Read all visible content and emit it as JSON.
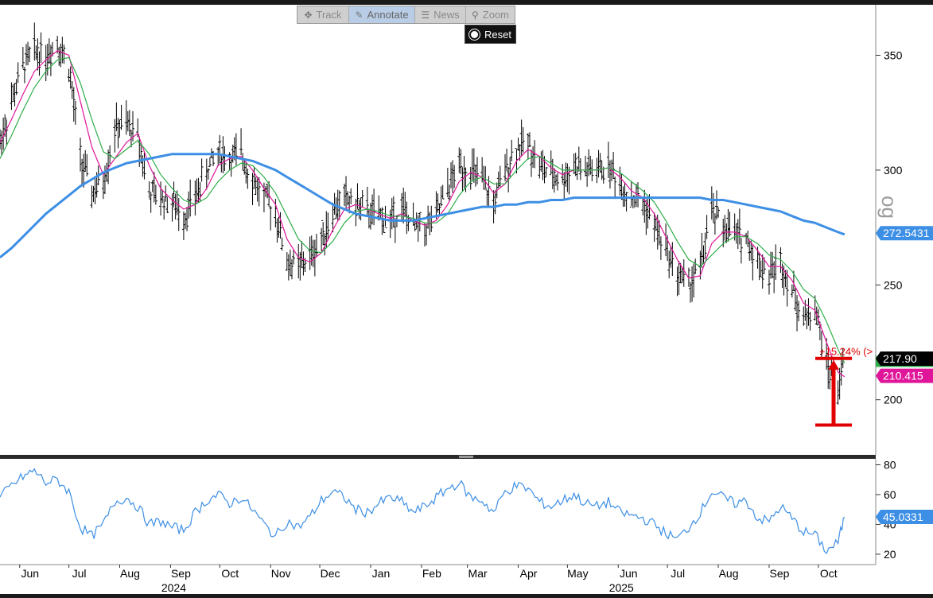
{
  "toolbar": {
    "buttons": [
      {
        "label": "Track",
        "icon": "crosshair-icon"
      },
      {
        "label": "Annotate",
        "icon": "pencil-icon"
      },
      {
        "label": "News",
        "icon": "news-icon"
      },
      {
        "label": "Zoom",
        "icon": "magnifier-icon"
      }
    ],
    "reset_label": "Reset"
  },
  "logo_text": "og",
  "colors": {
    "price": "#000000",
    "ma_fast": "#e0169a",
    "ma_mid": "#2fae4a",
    "ma_slow": "#3d8fe5",
    "rsi": "#3d8fe5",
    "annotation": "#e00000",
    "label_last": "#000000"
  },
  "chart_data": [
    {
      "type": "line",
      "name": "price-panel",
      "ylim": [
        176,
        372
      ],
      "yticks": [
        200,
        250,
        300,
        350
      ],
      "x_range": [
        "2024-05-20",
        "2025-10-20"
      ],
      "x_month_labels": [
        {
          "date": "2024-06-01",
          "label": "Jun"
        },
        {
          "date": "2024-07-01",
          "label": "Jul"
        },
        {
          "date": "2024-08-01",
          "label": "Aug"
        },
        {
          "date": "2024-09-01",
          "label": "Sep"
        },
        {
          "date": "2024-10-01",
          "label": "Oct"
        },
        {
          "date": "2024-11-01",
          "label": "Nov"
        },
        {
          "date": "2024-12-01",
          "label": "Dec"
        },
        {
          "date": "2025-01-01",
          "label": "Jan"
        },
        {
          "date": "2025-02-01",
          "label": "Feb"
        },
        {
          "date": "2025-03-01",
          "label": "Mar"
        },
        {
          "date": "2025-04-01",
          "label": "Apr"
        },
        {
          "date": "2025-05-01",
          "label": "May"
        },
        {
          "date": "2025-06-01",
          "label": "Jun"
        },
        {
          "date": "2025-07-01",
          "label": "Jul"
        },
        {
          "date": "2025-08-01",
          "label": "Aug"
        },
        {
          "date": "2025-09-01",
          "label": "Sep"
        },
        {
          "date": "2025-10-01",
          "label": "Oct"
        }
      ],
      "x_year_labels": [
        {
          "date": "2024-09-01",
          "label": "2024"
        },
        {
          "date": "2025-06-01",
          "label": "2025"
        }
      ],
      "price_close": {
        "x": [
          "2024-05-20",
          "2024-05-27",
          "2024-06-03",
          "2024-06-10",
          "2024-06-17",
          "2024-06-24",
          "2024-07-01",
          "2024-07-08",
          "2024-07-15",
          "2024-07-22",
          "2024-07-29",
          "2024-08-05",
          "2024-08-12",
          "2024-08-19",
          "2024-08-26",
          "2024-09-02",
          "2024-09-09",
          "2024-09-16",
          "2024-09-23",
          "2024-09-30",
          "2024-10-07",
          "2024-10-14",
          "2024-10-21",
          "2024-10-28",
          "2024-11-04",
          "2024-11-11",
          "2024-11-18",
          "2024-11-25",
          "2024-12-02",
          "2024-12-09",
          "2024-12-16",
          "2024-12-23",
          "2024-12-30",
          "2025-01-06",
          "2025-01-13",
          "2025-01-20",
          "2025-01-27",
          "2025-02-03",
          "2025-02-10",
          "2025-02-17",
          "2025-02-24",
          "2025-03-03",
          "2025-03-10",
          "2025-03-17",
          "2025-03-24",
          "2025-03-31",
          "2025-04-07",
          "2025-04-14",
          "2025-04-21",
          "2025-04-28",
          "2025-05-05",
          "2025-05-12",
          "2025-05-19",
          "2025-05-26",
          "2025-06-02",
          "2025-06-09",
          "2025-06-16",
          "2025-06-23",
          "2025-06-30",
          "2025-07-07",
          "2025-07-14",
          "2025-07-21",
          "2025-07-28",
          "2025-08-04",
          "2025-08-11",
          "2025-08-18",
          "2025-08-25",
          "2025-09-01",
          "2025-09-08",
          "2025-09-15",
          "2025-09-22",
          "2025-09-29",
          "2025-10-06",
          "2025-10-13",
          "2025-10-17"
        ],
        "y": [
          312,
          330,
          345,
          352,
          350,
          356,
          345,
          305,
          290,
          295,
          318,
          320,
          315,
          290,
          288,
          286,
          280,
          288,
          300,
          308,
          305,
          307,
          296,
          288,
          282,
          260,
          258,
          262,
          270,
          282,
          288,
          285,
          282,
          280,
          278,
          284,
          275,
          275,
          280,
          292,
          302,
          300,
          295,
          285,
          300,
          310,
          312,
          302,
          298,
          296,
          302,
          300,
          300,
          302,
          294,
          288,
          286,
          276,
          266,
          255,
          250,
          258,
          282,
          276,
          272,
          270,
          260,
          255,
          260,
          248,
          235,
          240,
          216,
          204,
          218
        ]
      },
      "moving_averages": [
        {
          "key": "ma_fast",
          "y": [
            312,
            322,
            333,
            343,
            348,
            352,
            350,
            330,
            310,
            298,
            305,
            312,
            316,
            302,
            292,
            287,
            283,
            285,
            292,
            302,
            305,
            306,
            300,
            292,
            285,
            270,
            262,
            260,
            264,
            274,
            283,
            285,
            283,
            281,
            279,
            281,
            278,
            276,
            278,
            285,
            295,
            299,
            297,
            290,
            294,
            304,
            309,
            306,
            301,
            298,
            300,
            300,
            300,
            301,
            297,
            291,
            288,
            281,
            271,
            261,
            253,
            254,
            268,
            273,
            273,
            271,
            265,
            258,
            258,
            252,
            242,
            239,
            225,
            212,
            210
          ]
        },
        {
          "key": "ma_mid",
          "y": [
            305,
            315,
            326,
            336,
            343,
            348,
            349,
            338,
            322,
            308,
            305,
            309,
            313,
            307,
            298,
            292,
            287,
            285,
            288,
            295,
            300,
            303,
            302,
            297,
            290,
            280,
            270,
            265,
            264,
            269,
            277,
            282,
            283,
            282,
            280,
            280,
            279,
            277,
            277,
            281,
            289,
            295,
            297,
            294,
            294,
            300,
            305,
            306,
            303,
            300,
            300,
            300,
            300,
            301,
            299,
            295,
            291,
            286,
            278,
            269,
            261,
            258,
            263,
            268,
            271,
            271,
            268,
            263,
            261,
            256,
            248,
            244,
            234,
            222,
            216
          ]
        },
        {
          "key": "ma_slow",
          "y": [
            262,
            266,
            271,
            276,
            281,
            285,
            289,
            293,
            296,
            299,
            301,
            303,
            304,
            305,
            306,
            307,
            307,
            307,
            307,
            307,
            306,
            305,
            304,
            302,
            300,
            297,
            294,
            291,
            288,
            285,
            283,
            281,
            280,
            279,
            278,
            278,
            278,
            279,
            280,
            281,
            282,
            283,
            284,
            284,
            285,
            285,
            286,
            286,
            287,
            287,
            288,
            288,
            288,
            288,
            288,
            288,
            288,
            288,
            288,
            288,
            288,
            288,
            287,
            287,
            286,
            285,
            284,
            283,
            282,
            280,
            278,
            277,
            275,
            273,
            272
          ]
        }
      ],
      "price_labels": [
        {
          "value": 272.5431,
          "text": "272.5431",
          "color": "#3d8fe5"
        },
        {
          "value": 217.9,
          "text": "217.90",
          "color": "#000000"
        },
        {
          "value": 210.415,
          "text": "210.415",
          "color": "#e0169a"
        }
      ],
      "annotation": {
        "text": "+15.24% (>",
        "from_value": 189,
        "to_value": 218
      }
    },
    {
      "type": "line",
      "name": "rsi-panel",
      "ylim": [
        13,
        84
      ],
      "yticks": [
        20,
        40,
        60,
        80
      ],
      "x": [
        "2024-05-20",
        "2024-05-27",
        "2024-06-03",
        "2024-06-10",
        "2024-06-17",
        "2024-06-24",
        "2024-07-01",
        "2024-07-08",
        "2024-07-15",
        "2024-07-22",
        "2024-07-29",
        "2024-08-05",
        "2024-08-12",
        "2024-08-19",
        "2024-08-26",
        "2024-09-02",
        "2024-09-09",
        "2024-09-16",
        "2024-09-23",
        "2024-09-30",
        "2024-10-07",
        "2024-10-14",
        "2024-10-21",
        "2024-10-28",
        "2024-11-04",
        "2024-11-11",
        "2024-11-18",
        "2024-11-25",
        "2024-12-02",
        "2024-12-09",
        "2024-12-16",
        "2024-12-23",
        "2024-12-30",
        "2025-01-06",
        "2025-01-13",
        "2025-01-20",
        "2025-01-27",
        "2025-02-03",
        "2025-02-10",
        "2025-02-17",
        "2025-02-24",
        "2025-03-03",
        "2025-03-10",
        "2025-03-17",
        "2025-03-24",
        "2025-03-31",
        "2025-04-07",
        "2025-04-14",
        "2025-04-21",
        "2025-04-28",
        "2025-05-05",
        "2025-05-12",
        "2025-05-19",
        "2025-05-26",
        "2025-06-02",
        "2025-06-09",
        "2025-06-16",
        "2025-06-23",
        "2025-06-30",
        "2025-07-07",
        "2025-07-14",
        "2025-07-21",
        "2025-07-28",
        "2025-08-04",
        "2025-08-11",
        "2025-08-18",
        "2025-08-25",
        "2025-09-01",
        "2025-09-08",
        "2025-09-15",
        "2025-09-22",
        "2025-09-29",
        "2025-10-06",
        "2025-10-13",
        "2025-10-17"
      ],
      "y": [
        58,
        66,
        72,
        76,
        68,
        70,
        62,
        38,
        32,
        40,
        55,
        58,
        52,
        40,
        42,
        38,
        36,
        48,
        56,
        60,
        54,
        58,
        50,
        40,
        32,
        42,
        38,
        45,
        56,
        62,
        58,
        50,
        48,
        54,
        58,
        55,
        48,
        52,
        58,
        64,
        68,
        58,
        56,
        48,
        62,
        66,
        64,
        55,
        52,
        56,
        60,
        54,
        52,
        55,
        48,
        46,
        44,
        40,
        34,
        30,
        38,
        48,
        62,
        58,
        54,
        56,
        44,
        42,
        52,
        44,
        35,
        33,
        22,
        28,
        45
      ]
    }
  ],
  "rsi_label": {
    "value": 45.0331,
    "text": "45.0331"
  }
}
